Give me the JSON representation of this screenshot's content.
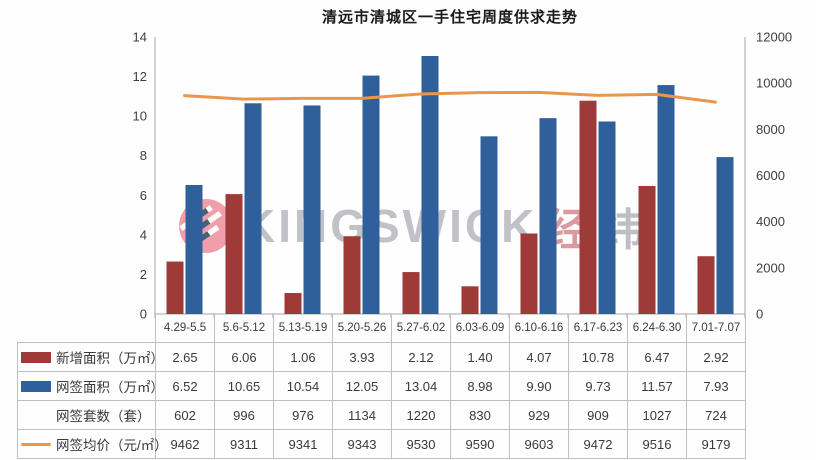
{
  "title": "清远市清城区一手住宅周度供求走势",
  "watermark": {
    "brand": "KINGSWICK",
    "cn_first": "经",
    "cn_second": "纬",
    "logo_circle_color": "#ed8e9c",
    "logo_stripe_dark": "#274463",
    "brand_gray": "#b7b7bf",
    "brand_pink": "#d5898d"
  },
  "colors": {
    "bar_red": "#9e3b38",
    "bar_blue": "#30609b",
    "line_orange": "#e8974c",
    "axis_line": "#a6a6a6",
    "table_border": "#bfbfbf",
    "axis_text": "#3f3f3f"
  },
  "chart_data": {
    "type": "bar",
    "title": "清远市清城区一手住宅周度供求走势",
    "categories": [
      "4.29-5.5",
      "5.6-5.12",
      "5.13-5.19",
      "5.20-5.26",
      "5.27-6.02",
      "6.03-6.09",
      "6.10-6.16",
      "6.17-6.23",
      "6.24-6.30",
      "7.01-7.07"
    ],
    "series": [
      {
        "name": "新增面积（万㎡）",
        "kind": "bar",
        "axis": "left",
        "color": "#9e3b38",
        "decimals": 2,
        "values": [
          2.65,
          6.06,
          1.06,
          3.93,
          2.12,
          1.4,
          4.07,
          10.78,
          6.47,
          2.92
        ]
      },
      {
        "name": "网签面积（万㎡）",
        "kind": "bar",
        "axis": "left",
        "color": "#30609b",
        "decimals": 2,
        "values": [
          6.52,
          10.65,
          10.54,
          12.05,
          13.04,
          8.98,
          9.9,
          9.73,
          11.57,
          7.93
        ]
      },
      {
        "name": "网签套数（套）",
        "kind": "none",
        "axis": null,
        "color": null,
        "decimals": 0,
        "values": [
          602,
          996,
          976,
          1134,
          1220,
          830,
          929,
          909,
          1027,
          724
        ]
      },
      {
        "name": "网签均价（元/㎡）",
        "kind": "line",
        "axis": "right",
        "color": "#e8974c",
        "decimals": 0,
        "values": [
          9462,
          9311,
          9341,
          9343,
          9530,
          9590,
          9603,
          9472,
          9516,
          9179
        ]
      }
    ],
    "left_axis": {
      "min": 0,
      "max": 14,
      "step": 2,
      "ticks": [
        0,
        2,
        4,
        6,
        8,
        10,
        12,
        14
      ]
    },
    "right_axis": {
      "min": 0,
      "max": 12000,
      "step": 2000,
      "ticks": [
        0,
        2000,
        4000,
        6000,
        8000,
        10000,
        12000
      ]
    },
    "grid": false,
    "legend_position": "data-table-left"
  }
}
